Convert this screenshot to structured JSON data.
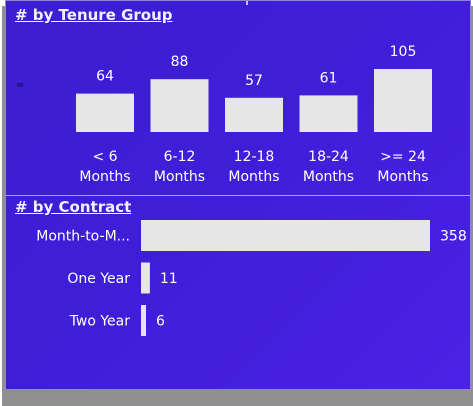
{
  "tenure": {
    "title": "# by Tenure Group",
    "chart_data": {
      "type": "bar",
      "title": "# by Tenure Group",
      "categories": [
        "< 6 Months",
        "6-12 Months",
        "12-18 Months",
        "18-24 Months",
        ">= 24 Months"
      ],
      "category_lines": [
        [
          "< 6",
          "Months"
        ],
        [
          "6-12",
          "Months"
        ],
        [
          "12-18",
          "Months"
        ],
        [
          "18-24",
          "Months"
        ],
        [
          ">= 24",
          "Months"
        ]
      ],
      "values": [
        64,
        88,
        57,
        61,
        105
      ],
      "orientation": "vertical",
      "data_labels": true
    }
  },
  "contract": {
    "title": "# by Contract",
    "chart_data": {
      "type": "bar",
      "title": "# by Contract",
      "categories": [
        "Month-to-M...",
        "One Year",
        "Two Year"
      ],
      "values": [
        358,
        11,
        6
      ],
      "orientation": "horizontal",
      "data_labels": true
    }
  },
  "colors": {
    "background": "#4221dc",
    "bar_fill": "#e6e6e6",
    "text": "#ffffff"
  },
  "side_glyph": "≈"
}
